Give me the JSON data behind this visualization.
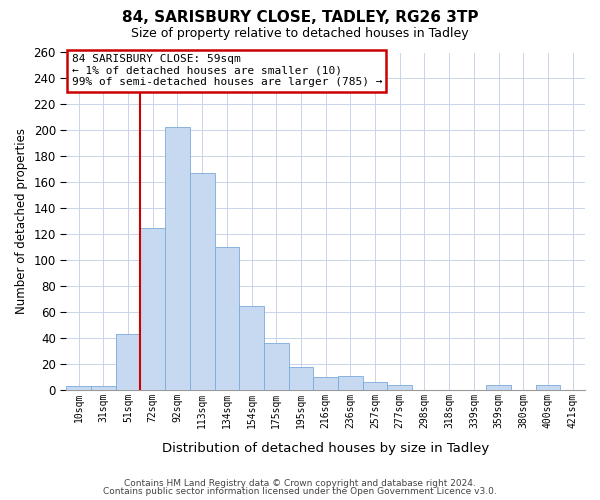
{
  "title": "84, SARISBURY CLOSE, TADLEY, RG26 3TP",
  "subtitle": "Size of property relative to detached houses in Tadley",
  "xlabel": "Distribution of detached houses by size in Tadley",
  "ylabel": "Number of detached properties",
  "bar_labels": [
    "10sqm",
    "31sqm",
    "51sqm",
    "72sqm",
    "92sqm",
    "113sqm",
    "134sqm",
    "154sqm",
    "175sqm",
    "195sqm",
    "216sqm",
    "236sqm",
    "257sqm",
    "277sqm",
    "298sqm",
    "318sqm",
    "339sqm",
    "359sqm",
    "380sqm",
    "400sqm",
    "421sqm"
  ],
  "bar_values": [
    3,
    3,
    43,
    125,
    203,
    167,
    110,
    65,
    36,
    18,
    10,
    11,
    6,
    4,
    0,
    0,
    0,
    4,
    0,
    4,
    0
  ],
  "bar_color": "#c6d9f0",
  "bar_edge_color": "#7aabda",
  "red_line_x": 2.5,
  "annotation_title": "84 SARISBURY CLOSE: 59sqm",
  "annotation_line1": "← 1% of detached houses are smaller (10)",
  "annotation_line2": "99% of semi-detached houses are larger (785) →",
  "annotation_box_color": "#ffffff",
  "annotation_box_edge": "#cc0000",
  "ylim": [
    0,
    260
  ],
  "yticks": [
    0,
    20,
    40,
    60,
    80,
    100,
    120,
    140,
    160,
    180,
    200,
    220,
    240,
    260
  ],
  "footer1": "Contains HM Land Registry data © Crown copyright and database right 2024.",
  "footer2": "Contains public sector information licensed under the Open Government Licence v3.0.",
  "red_line_color": "#cc0000",
  "bg_color": "#ffffff",
  "grid_color": "#c8d4e8"
}
